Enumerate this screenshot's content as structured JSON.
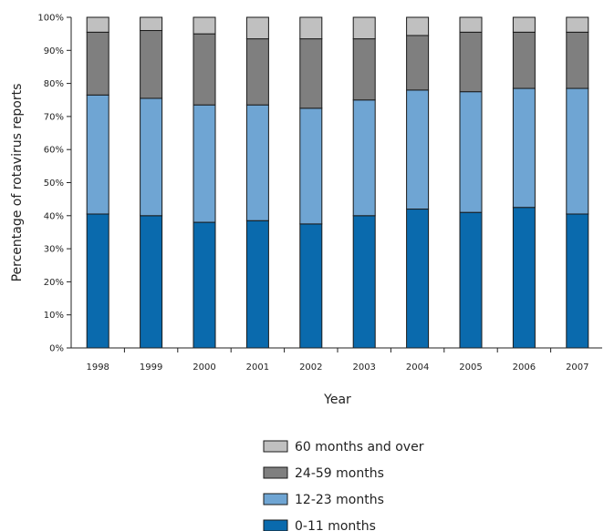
{
  "chart_data": {
    "type": "bar",
    "stacked": true,
    "categories": [
      "1998",
      "1999",
      "2000",
      "2001",
      "2002",
      "2003",
      "2004",
      "2005",
      "2006",
      "2007"
    ],
    "series": [
      {
        "name": "0-11 months",
        "color": "#0a6aad",
        "values": [
          40.5,
          40,
          38,
          38.5,
          37.5,
          40,
          42,
          41,
          42.5,
          40.5
        ]
      },
      {
        "name": "12-23 months",
        "color": "#6fa5d3",
        "values": [
          36,
          35.5,
          35.5,
          35,
          35,
          35,
          36,
          36.5,
          36,
          38
        ]
      },
      {
        "name": "24-59 months",
        "color": "#7f7f7f",
        "values": [
          19,
          20.5,
          21.5,
          20,
          21,
          18.5,
          16.5,
          18,
          17,
          17
        ]
      },
      {
        "name": "60 months and over",
        "color": "#c0c0c0",
        "values": [
          4.5,
          4,
          5,
          6.5,
          6.5,
          6.5,
          5.5,
          4.5,
          4.5,
          4.5
        ]
      }
    ],
    "xlabel": "Year",
    "ylabel": "Percentage of rotavirus reports",
    "ylim": [
      0,
      100
    ],
    "yticks": [
      "0%",
      "10%",
      "20%",
      "30%",
      "40%",
      "50%",
      "60%",
      "70%",
      "80%",
      "90%",
      "100%"
    ],
    "grid": false,
    "legend": {
      "placement": "bottom-center",
      "order": [
        "60 months and over",
        "24-59 months",
        "12-23 months",
        "0-11 months"
      ]
    }
  }
}
